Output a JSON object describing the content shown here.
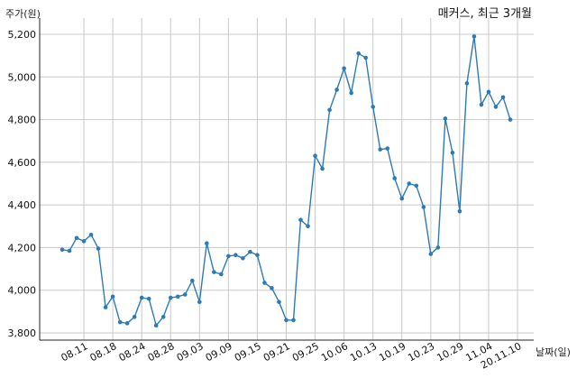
{
  "chart_data": {
    "type": "line",
    "title": "매커스, 최근 3개월",
    "ylabel": "주가(원)",
    "xlabel": "날짜(일)",
    "ylim": [
      3780,
      5250
    ],
    "yticks": [
      3800,
      4000,
      4200,
      4400,
      4600,
      4800,
      5000,
      5200
    ],
    "ytick_labels": [
      "3,800",
      "4,000",
      "4,200",
      "4,400",
      "4,600",
      "4,800",
      "5,000",
      "5,200"
    ],
    "xtick_labels": [
      "08.11",
      "08.18",
      "08.24",
      "08.28",
      "09.03",
      "09.09",
      "09.15",
      "09.21",
      "09.25",
      "10.06",
      "10.13",
      "10.19",
      "10.23",
      "10.29",
      "11.04",
      "20.11.10"
    ],
    "xtick_index": [
      3,
      7,
      11,
      15,
      19,
      23,
      27,
      31,
      35,
      39,
      43,
      47,
      51,
      55,
      59,
      63
    ],
    "grid": true,
    "color": "#2e7ab4",
    "series": [
      {
        "values": [
          4190,
          4185,
          4245,
          4230,
          4260,
          4195,
          3920,
          3970,
          3850,
          3845,
          3875,
          3965,
          3960,
          3835,
          3875,
          3965,
          3970,
          3980,
          4045,
          3945,
          4220,
          4085,
          4075,
          4160,
          4165,
          4150,
          4180,
          4165,
          4035,
          4010,
          3945,
          3860,
          3860,
          4330,
          4300,
          4630,
          4570,
          4845,
          4940,
          5040,
          4925,
          5110,
          5090,
          4860,
          4660,
          4665,
          4525,
          4430,
          4500,
          4490,
          4390,
          4170,
          4200,
          4805,
          4645,
          4370,
          4970,
          5190,
          4870,
          4930,
          4860,
          4905,
          4800
        ]
      }
    ]
  }
}
